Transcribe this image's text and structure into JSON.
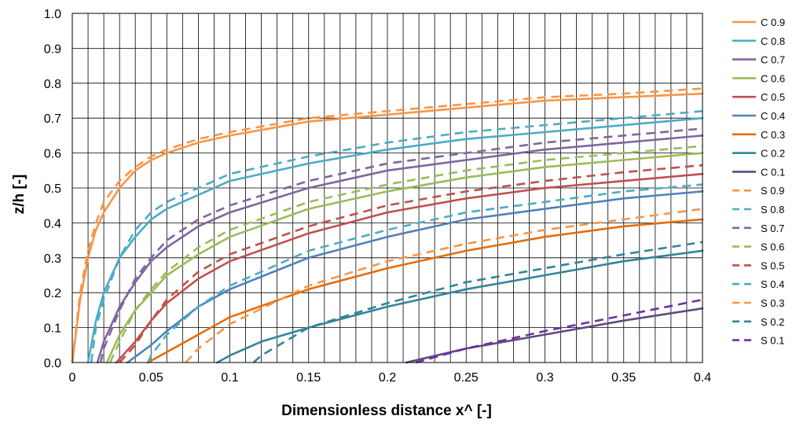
{
  "chart_data": {
    "type": "line",
    "title": "",
    "xlabel": "Dimensionless distance  x^  [-]",
    "ylabel": "z/h [-]",
    "xlim": [
      0,
      0.4
    ],
    "ylim": [
      0,
      1.0
    ],
    "x_ticks": [
      "0",
      "0.05",
      "0.1",
      "0.15",
      "0.2",
      "0.25",
      "0.3",
      "0.35",
      "0.4"
    ],
    "y_ticks": [
      "0.0",
      "0.1",
      "0.2",
      "0.3",
      "0.4",
      "0.5",
      "0.6",
      "0.7",
      "0.8",
      "0.9",
      "1.0"
    ],
    "grid": true,
    "legend_position": "right",
    "series": [
      {
        "name": "C 0.9",
        "color": "#F79646",
        "style": "solid",
        "points": [
          [
            0,
            0
          ],
          [
            0.005,
            0.18
          ],
          [
            0.01,
            0.3
          ],
          [
            0.015,
            0.38
          ],
          [
            0.02,
            0.43
          ],
          [
            0.03,
            0.5
          ],
          [
            0.04,
            0.55
          ],
          [
            0.05,
            0.58
          ],
          [
            0.06,
            0.6
          ],
          [
            0.08,
            0.63
          ],
          [
            0.1,
            0.65
          ],
          [
            0.15,
            0.69
          ],
          [
            0.2,
            0.71
          ],
          [
            0.25,
            0.73
          ],
          [
            0.3,
            0.75
          ],
          [
            0.35,
            0.76
          ],
          [
            0.4,
            0.77
          ]
        ]
      },
      {
        "name": "C 0.8",
        "color": "#4BACC6",
        "style": "solid",
        "points": [
          [
            0.01,
            0
          ],
          [
            0.015,
            0.12
          ],
          [
            0.02,
            0.2
          ],
          [
            0.03,
            0.3
          ],
          [
            0.04,
            0.36
          ],
          [
            0.05,
            0.41
          ],
          [
            0.06,
            0.44
          ],
          [
            0.08,
            0.48
          ],
          [
            0.1,
            0.52
          ],
          [
            0.15,
            0.57
          ],
          [
            0.2,
            0.61
          ],
          [
            0.25,
            0.64
          ],
          [
            0.3,
            0.66
          ],
          [
            0.35,
            0.68
          ],
          [
            0.4,
            0.7
          ]
        ]
      },
      {
        "name": "C 0.7",
        "color": "#8064A2",
        "style": "solid",
        "points": [
          [
            0.016,
            0
          ],
          [
            0.02,
            0.06
          ],
          [
            0.03,
            0.16
          ],
          [
            0.04,
            0.23
          ],
          [
            0.05,
            0.29
          ],
          [
            0.06,
            0.33
          ],
          [
            0.08,
            0.39
          ],
          [
            0.1,
            0.43
          ],
          [
            0.15,
            0.5
          ],
          [
            0.2,
            0.55
          ],
          [
            0.25,
            0.58
          ],
          [
            0.3,
            0.61
          ],
          [
            0.35,
            0.63
          ],
          [
            0.4,
            0.65
          ]
        ]
      },
      {
        "name": "C 0.6",
        "color": "#9BBB59",
        "style": "solid",
        "points": [
          [
            0.022,
            0
          ],
          [
            0.03,
            0.08
          ],
          [
            0.04,
            0.15
          ],
          [
            0.05,
            0.2
          ],
          [
            0.06,
            0.25
          ],
          [
            0.08,
            0.31
          ],
          [
            0.1,
            0.36
          ],
          [
            0.15,
            0.44
          ],
          [
            0.2,
            0.49
          ],
          [
            0.25,
            0.53
          ],
          [
            0.3,
            0.56
          ],
          [
            0.35,
            0.58
          ],
          [
            0.4,
            0.6
          ]
        ]
      },
      {
        "name": "C 0.5",
        "color": "#C0504D",
        "style": "solid",
        "points": [
          [
            0.028,
            0
          ],
          [
            0.04,
            0.06
          ],
          [
            0.05,
            0.12
          ],
          [
            0.06,
            0.17
          ],
          [
            0.08,
            0.24
          ],
          [
            0.1,
            0.29
          ],
          [
            0.15,
            0.37
          ],
          [
            0.2,
            0.43
          ],
          [
            0.25,
            0.47
          ],
          [
            0.3,
            0.5
          ],
          [
            0.35,
            0.52
          ],
          [
            0.4,
            0.54
          ]
        ]
      },
      {
        "name": "C 0.4",
        "color": "#4F81BD",
        "style": "solid",
        "points": [
          [
            0.035,
            0
          ],
          [
            0.05,
            0.05
          ],
          [
            0.06,
            0.09
          ],
          [
            0.08,
            0.16
          ],
          [
            0.1,
            0.21
          ],
          [
            0.15,
            0.3
          ],
          [
            0.2,
            0.36
          ],
          [
            0.25,
            0.41
          ],
          [
            0.3,
            0.44
          ],
          [
            0.35,
            0.47
          ],
          [
            0.4,
            0.49
          ]
        ]
      },
      {
        "name": "C 0.3",
        "color": "#E46C0A",
        "style": "solid",
        "points": [
          [
            0.048,
            0
          ],
          [
            0.06,
            0.03
          ],
          [
            0.08,
            0.08
          ],
          [
            0.1,
            0.13
          ],
          [
            0.15,
            0.21
          ],
          [
            0.2,
            0.27
          ],
          [
            0.25,
            0.32
          ],
          [
            0.3,
            0.36
          ],
          [
            0.35,
            0.39
          ],
          [
            0.4,
            0.41
          ]
        ]
      },
      {
        "name": "C 0.2",
        "color": "#31859C",
        "style": "solid",
        "points": [
          [
            0.092,
            0
          ],
          [
            0.1,
            0.02
          ],
          [
            0.12,
            0.06
          ],
          [
            0.15,
            0.1
          ],
          [
            0.2,
            0.16
          ],
          [
            0.25,
            0.21
          ],
          [
            0.3,
            0.25
          ],
          [
            0.35,
            0.29
          ],
          [
            0.4,
            0.32
          ]
        ]
      },
      {
        "name": "C 0.1",
        "color": "#604A7B",
        "style": "solid",
        "points": [
          [
            0.212,
            0
          ],
          [
            0.25,
            0.04
          ],
          [
            0.3,
            0.08
          ],
          [
            0.35,
            0.12
          ],
          [
            0.4,
            0.155
          ]
        ]
      },
      {
        "name": "S 0.9",
        "color": "#F79646",
        "style": "dashed",
        "points": [
          [
            0,
            0
          ],
          [
            0.005,
            0.2
          ],
          [
            0.01,
            0.32
          ],
          [
            0.015,
            0.4
          ],
          [
            0.02,
            0.46
          ],
          [
            0.03,
            0.52
          ],
          [
            0.04,
            0.56
          ],
          [
            0.05,
            0.59
          ],
          [
            0.06,
            0.61
          ],
          [
            0.08,
            0.64
          ],
          [
            0.1,
            0.66
          ],
          [
            0.15,
            0.7
          ],
          [
            0.2,
            0.72
          ],
          [
            0.25,
            0.74
          ],
          [
            0.3,
            0.76
          ],
          [
            0.35,
            0.77
          ],
          [
            0.4,
            0.785
          ]
        ]
      },
      {
        "name": "S 0.8",
        "color": "#4BACC6",
        "style": "dashed",
        "points": [
          [
            0.012,
            0
          ],
          [
            0.015,
            0.1
          ],
          [
            0.02,
            0.18
          ],
          [
            0.03,
            0.3
          ],
          [
            0.04,
            0.38
          ],
          [
            0.05,
            0.43
          ],
          [
            0.06,
            0.46
          ],
          [
            0.08,
            0.5
          ],
          [
            0.1,
            0.54
          ],
          [
            0.15,
            0.59
          ],
          [
            0.2,
            0.63
          ],
          [
            0.25,
            0.66
          ],
          [
            0.3,
            0.68
          ],
          [
            0.35,
            0.7
          ],
          [
            0.4,
            0.72
          ]
        ]
      },
      {
        "name": "S 0.7",
        "color": "#8064A2",
        "style": "dashed",
        "points": [
          [
            0.018,
            0
          ],
          [
            0.02,
            0.04
          ],
          [
            0.03,
            0.15
          ],
          [
            0.04,
            0.24
          ],
          [
            0.05,
            0.3
          ],
          [
            0.06,
            0.35
          ],
          [
            0.08,
            0.41
          ],
          [
            0.1,
            0.45
          ],
          [
            0.15,
            0.52
          ],
          [
            0.2,
            0.57
          ],
          [
            0.25,
            0.6
          ],
          [
            0.3,
            0.63
          ],
          [
            0.35,
            0.65
          ],
          [
            0.4,
            0.67
          ]
        ]
      },
      {
        "name": "S 0.6",
        "color": "#9BBB59",
        "style": "dashed",
        "points": [
          [
            0.024,
            0
          ],
          [
            0.03,
            0.06
          ],
          [
            0.04,
            0.15
          ],
          [
            0.05,
            0.21
          ],
          [
            0.06,
            0.26
          ],
          [
            0.08,
            0.33
          ],
          [
            0.1,
            0.38
          ],
          [
            0.15,
            0.46
          ],
          [
            0.2,
            0.51
          ],
          [
            0.25,
            0.55
          ],
          [
            0.3,
            0.58
          ],
          [
            0.35,
            0.6
          ],
          [
            0.4,
            0.62
          ]
        ]
      },
      {
        "name": "S 0.5",
        "color": "#C0504D",
        "style": "dashed",
        "points": [
          [
            0.03,
            0
          ],
          [
            0.04,
            0.05
          ],
          [
            0.05,
            0.12
          ],
          [
            0.06,
            0.18
          ],
          [
            0.08,
            0.26
          ],
          [
            0.1,
            0.31
          ],
          [
            0.15,
            0.39
          ],
          [
            0.2,
            0.45
          ],
          [
            0.25,
            0.49
          ],
          [
            0.3,
            0.52
          ],
          [
            0.35,
            0.545
          ],
          [
            0.4,
            0.565
          ]
        ]
      },
      {
        "name": "S 0.4",
        "color": "#4BACC6",
        "style": "dashed",
        "points": [
          [
            0.048,
            0
          ],
          [
            0.05,
            0.02
          ],
          [
            0.06,
            0.08
          ],
          [
            0.08,
            0.16
          ],
          [
            0.1,
            0.22
          ],
          [
            0.15,
            0.32
          ],
          [
            0.2,
            0.38
          ],
          [
            0.25,
            0.43
          ],
          [
            0.3,
            0.46
          ],
          [
            0.35,
            0.49
          ],
          [
            0.4,
            0.51
          ]
        ]
      },
      {
        "name": "S 0.3",
        "color": "#F79646",
        "style": "dashed",
        "points": [
          [
            0.072,
            0
          ],
          [
            0.08,
            0.04
          ],
          [
            0.1,
            0.11
          ],
          [
            0.15,
            0.22
          ],
          [
            0.2,
            0.29
          ],
          [
            0.25,
            0.34
          ],
          [
            0.3,
            0.38
          ],
          [
            0.35,
            0.41
          ],
          [
            0.4,
            0.44
          ]
        ]
      },
      {
        "name": "S 0.2",
        "color": "#31859C",
        "style": "dashed",
        "points": [
          [
            0.115,
            0
          ],
          [
            0.12,
            0.02
          ],
          [
            0.15,
            0.1
          ],
          [
            0.2,
            0.17
          ],
          [
            0.25,
            0.23
          ],
          [
            0.3,
            0.27
          ],
          [
            0.35,
            0.31
          ],
          [
            0.4,
            0.345
          ]
        ]
      },
      {
        "name": "S 0.1",
        "color": "#7030A0",
        "style": "dashed",
        "points": [
          [
            0.218,
            0
          ],
          [
            0.25,
            0.04
          ],
          [
            0.3,
            0.09
          ],
          [
            0.35,
            0.135
          ],
          [
            0.4,
            0.18
          ]
        ]
      }
    ]
  }
}
